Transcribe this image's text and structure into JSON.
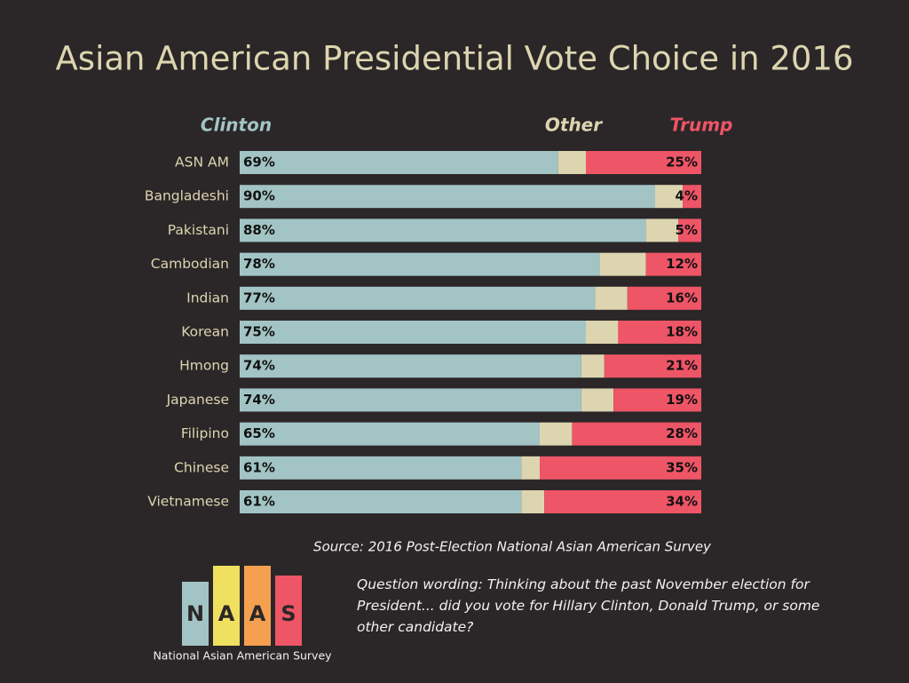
{
  "chart_data": {
    "type": "stacked-barh",
    "title": "Asian American Presidential Vote Choice in 2016",
    "categories": [
      "ASN AM",
      "Bangladeshi",
      "Pakistani",
      "Cambodian",
      "Indian",
      "Korean",
      "Hmong",
      "Japanese",
      "Filipino",
      "Chinese",
      "Vietnamese"
    ],
    "series": [
      {
        "name": "Clinton",
        "color": "#a3c4c4",
        "values": [
          69,
          90,
          88,
          78,
          77,
          75,
          74,
          74,
          65,
          61,
          61
        ],
        "value_labels": [
          "69%",
          "90%",
          "88%",
          "78%",
          "77%",
          "75%",
          "74%",
          "74%",
          "65%",
          "61%",
          "61%"
        ]
      },
      {
        "name": "Other",
        "color": "#ddd5b0",
        "values": [
          6,
          6,
          7,
          10,
          7,
          7,
          5,
          7,
          7,
          4,
          5
        ]
      },
      {
        "name": "Trump",
        "color": "#ee5566",
        "values": [
          25,
          4,
          5,
          12,
          16,
          18,
          21,
          19,
          28,
          35,
          34
        ],
        "value_labels": [
          "25%",
          "4%",
          "5%",
          "12%",
          "16%",
          "18%",
          "21%",
          "19%",
          "28%",
          "35%",
          "34%"
        ]
      }
    ],
    "xlim": [
      0,
      100
    ]
  },
  "source": "Source: 2016 Post-Election National Asian American Survey",
  "question": "Question wording: Thinking about the past November election for President... did you vote for Hillary Clinton, Donald Trump, or some other candidate?",
  "logo": {
    "letters": [
      "N",
      "A",
      "A",
      "S"
    ],
    "caption": "National Asian American Survey"
  }
}
